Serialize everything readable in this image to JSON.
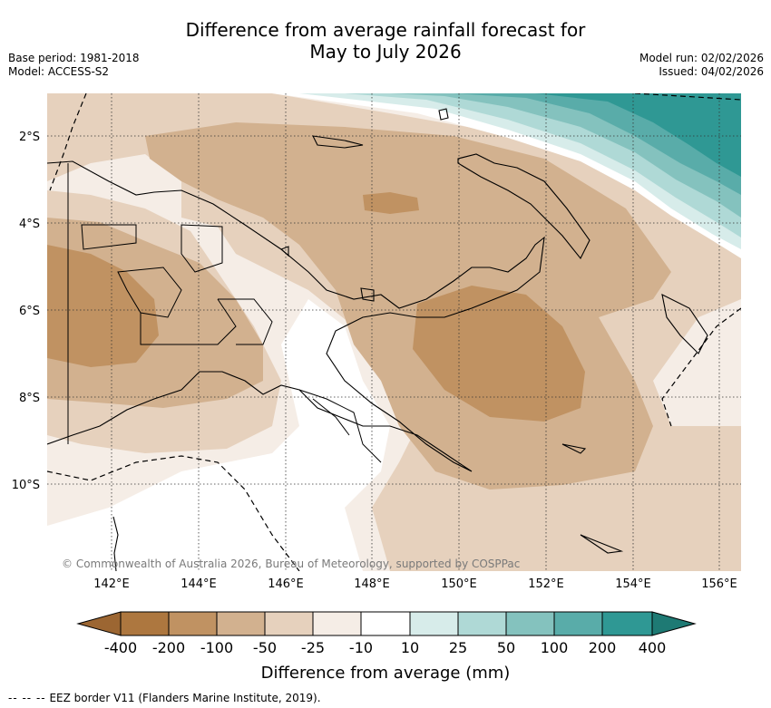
{
  "header": {
    "title_line1": "Difference from average rainfall forecast for",
    "title_line2": "May to July 2026",
    "base_period": "Base period: 1981-2018",
    "model": "Model: ACCESS-S2",
    "model_run": "Model run: 02/02/2026",
    "issued": "Issued: 04/02/2026"
  },
  "map": {
    "lat_labels": [
      "2°S",
      "4°S",
      "6°S",
      "8°S",
      "10°S"
    ],
    "lon_labels": [
      "142°E",
      "144°E",
      "146°E",
      "148°E",
      "150°E",
      "152°E",
      "154°E",
      "156°E"
    ],
    "copyright": "© Commonwealth of Australia 2026, Bureau of Meteorology, supported by COSPPac"
  },
  "colorbar": {
    "label": "Difference from average (mm)",
    "ticks": [
      "-400",
      "-200",
      "-100",
      "-50",
      "-25",
      "-10",
      "10",
      "25",
      "50",
      "100",
      "200",
      "400"
    ],
    "colors": {
      "lt400": "#9c6632",
      "c1": "#ad773f",
      "c2": "#c09262",
      "c3": "#d2b18f",
      "c4": "#e6d1bd",
      "c5": "#f5ede6",
      "c6": "#ffffff",
      "c7": "#d7ecea",
      "c8": "#afd9d6",
      "c9": "#84c2be",
      "c10": "#59aca9",
      "c11": "#2f9894",
      "gt400": "#1e7a74"
    }
  },
  "footer": {
    "legend_dash": "-- -- --",
    "legend_text": "EEZ border V11 (Flanders Marine Institute, 2019)."
  }
}
